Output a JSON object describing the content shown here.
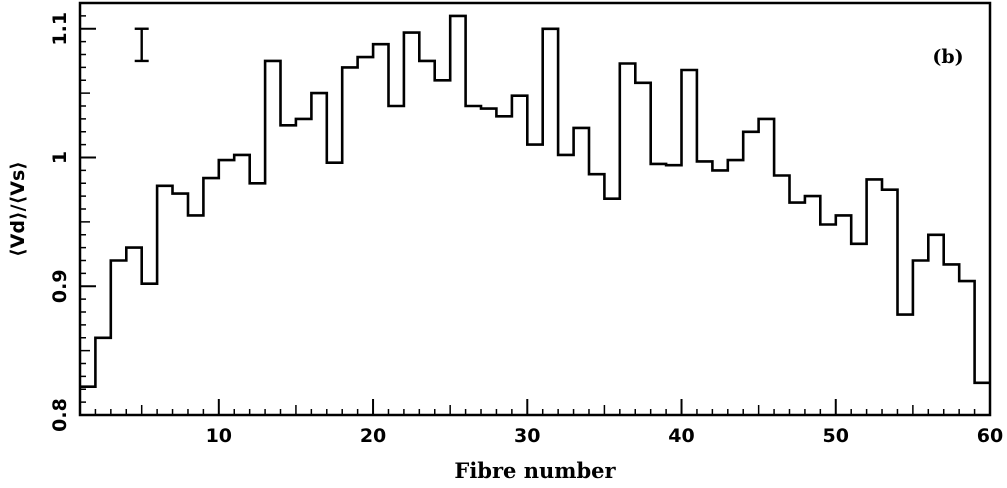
{
  "chart_data": {
    "type": "histogram",
    "panel_label": "(b)",
    "xlabel": "Fibre number",
    "ylabel": "⟨Vd⟩/⟨Vs⟩",
    "xlim": [
      1,
      60
    ],
    "ylim": [
      0.8,
      1.12
    ],
    "x_ticks": [
      10,
      20,
      30,
      40,
      50,
      60
    ],
    "y_ticks": [
      0.8,
      0.9,
      1,
      1.1
    ],
    "y_tick_labels": [
      "0.8",
      "0.9",
      "1",
      "1.1"
    ],
    "grid": false,
    "bins": {
      "x": [
        1,
        2,
        3,
        4,
        5,
        6,
        7,
        8,
        9,
        10,
        11,
        12,
        13,
        14,
        15,
        16,
        17,
        18,
        19,
        20,
        21,
        22,
        23,
        24,
        25,
        26,
        27,
        28,
        29,
        30,
        31,
        32,
        33,
        34,
        35,
        36,
        37,
        38,
        39,
        40,
        41,
        42,
        43,
        44,
        45,
        46,
        47,
        48,
        49,
        50,
        51,
        52,
        53,
        54,
        55,
        56,
        57,
        58,
        59
      ],
      "values": [
        0.822,
        0.86,
        0.92,
        0.93,
        0.902,
        0.978,
        0.972,
        0.955,
        0.984,
        0.998,
        1.002,
        0.98,
        1.075,
        1.025,
        1.03,
        1.05,
        0.996,
        1.07,
        1.078,
        1.088,
        1.04,
        1.097,
        1.075,
        1.06,
        1.11,
        1.04,
        1.038,
        1.032,
        1.048,
        1.01,
        1.1,
        1.002,
        1.023,
        0.987,
        0.968,
        1.073,
        1.058,
        0.995,
        0.994,
        1.068,
        0.997,
        0.99,
        0.998,
        1.02,
        1.03,
        0.986,
        0.965,
        0.97,
        0.948,
        0.955,
        0.933,
        0.983,
        0.975,
        0.878,
        0.92,
        0.94,
        0.917,
        0.904,
        0.825
      ]
    },
    "error_bar": {
      "x": 5,
      "y_low": 1.075,
      "y_high": 1.1
    }
  }
}
